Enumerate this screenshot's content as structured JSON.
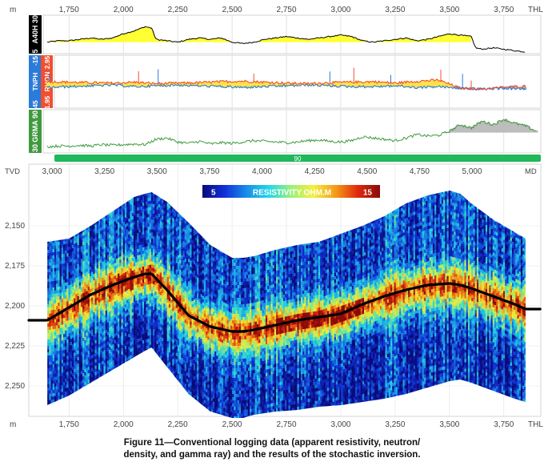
{
  "chart_data": [
    {
      "type": "line",
      "panel": "apparent-resistivity",
      "track_label": "A40H",
      "scale_min": "5",
      "scale_max": "30",
      "fill_color": "#ffff33",
      "fill_edge_color": "#000000",
      "x_unit_top": "m",
      "x_unit_end": "THL",
      "x_ticks": [
        "1,750",
        "2,000",
        "2,250",
        "2,500",
        "2,750",
        "3,000",
        "3,250",
        "3,500",
        "3,750"
      ],
      "x_tick_values": [
        1750,
        2000,
        2250,
        2500,
        2750,
        3000,
        3250,
        3500,
        3750
      ],
      "x_range": [
        1565,
        3920
      ],
      "x": [
        1650,
        1700,
        1750,
        1800,
        1850,
        1900,
        1950,
        2000,
        2050,
        2100,
        2130,
        2150,
        2200,
        2250,
        2300,
        2350,
        2400,
        2450,
        2500,
        2550,
        2600,
        2650,
        2700,
        2750,
        2800,
        2850,
        2900,
        2950,
        3000,
        3050,
        3100,
        3150,
        3200,
        3250,
        3300,
        3350,
        3400,
        3450,
        3500,
        3550,
        3600,
        3620,
        3650,
        3700,
        3750,
        3800,
        3850
      ],
      "values": [
        12,
        13,
        13,
        14,
        15,
        14,
        15,
        18,
        20,
        23,
        22,
        14,
        13,
        12,
        14,
        15,
        14,
        15,
        12,
        11,
        12,
        14,
        15,
        16,
        15,
        14,
        15,
        16,
        17,
        16,
        13,
        12,
        13,
        14,
        15,
        13,
        14,
        16,
        18,
        17,
        16,
        8,
        7,
        8,
        7,
        6,
        5
      ]
    },
    {
      "type": "line",
      "panel": "neutron-density",
      "label_neutron": "TNPH",
      "label_density": "RHON",
      "neutron_scale": [
        "45",
        "-15"
      ],
      "density_scale": [
        "1.95",
        "2.95"
      ],
      "neutron_color": "#2b7bd8",
      "density_color": "#f05030",
      "crossover_fill_color": "#ffe34d",
      "separation_fill_color": "#b0b0b0",
      "x": [
        1650,
        1750,
        1850,
        1950,
        2050,
        2150,
        2250,
        2350,
        2450,
        2550,
        2650,
        2750,
        2850,
        2950,
        3050,
        3150,
        3250,
        3350,
        3450,
        3550,
        3650,
        3750,
        3850
      ],
      "series": [
        {
          "name": "TNPH",
          "values": [
            22,
            21,
            20,
            19,
            21,
            20,
            19,
            20,
            21,
            22,
            21,
            20,
            19,
            20,
            21,
            21,
            20,
            22,
            21,
            23,
            24,
            23,
            24
          ]
        },
        {
          "name": "RHON",
          "values": [
            2.45,
            2.44,
            2.43,
            2.42,
            2.44,
            2.41,
            2.42,
            2.43,
            2.45,
            2.46,
            2.44,
            2.42,
            2.41,
            2.43,
            2.44,
            2.45,
            2.42,
            2.46,
            2.48,
            2.32,
            2.3,
            2.34,
            2.36
          ]
        }
      ]
    },
    {
      "type": "line",
      "panel": "gamma-ray",
      "track_label": "GRMA",
      "scale_min": "30",
      "scale_max": "90",
      "line_color": "#3f9a3f",
      "fill_color": "#bdbdbd",
      "x": [
        1650,
        1700,
        1750,
        1800,
        1850,
        1900,
        1950,
        2000,
        2050,
        2100,
        2150,
        2200,
        2250,
        2300,
        2350,
        2400,
        2450,
        2500,
        2550,
        2600,
        2650,
        2700,
        2750,
        2800,
        2850,
        2900,
        2950,
        3000,
        3050,
        3100,
        3150,
        3200,
        3250,
        3300,
        3350,
        3400,
        3450,
        3500,
        3550,
        3600,
        3650,
        3700,
        3750,
        3800,
        3850,
        3900
      ],
      "values": [
        37,
        38,
        38,
        39,
        38,
        40,
        39,
        40,
        41,
        40,
        48,
        50,
        44,
        42,
        45,
        41,
        43,
        42,
        44,
        46,
        45,
        44,
        43,
        44,
        46,
        47,
        45,
        44,
        46,
        52,
        50,
        48,
        46,
        50,
        55,
        53,
        54,
        60,
        70,
        65,
        75,
        70,
        78,
        72,
        68,
        60
      ]
    },
    {
      "type": "bar",
      "panel": "dip-band",
      "value_label": "90",
      "color": "#1fb85a"
    },
    {
      "type": "heatmap",
      "panel": "stochastic-inversion",
      "title": "RESISTIVITY OHM.M",
      "colorbar_min": "5",
      "colorbar_max": "15",
      "colormap": [
        "#0a0a7a",
        "#1030d8",
        "#1a8ee8",
        "#22d8e8",
        "#9cf07a",
        "#f5f03a",
        "#f59a18",
        "#e0280e",
        "#8a0a0a"
      ],
      "y_unit": "TVD",
      "md_unit": "MD",
      "y_ticks": [
        "2,150",
        "2,175",
        "2,200",
        "2,225",
        "2,250"
      ],
      "y_tick_values": [
        2150,
        2175,
        2200,
        2225,
        2250
      ],
      "y_range": [
        2120,
        2268
      ],
      "md_ticks": [
        "3,000",
        "3,250",
        "3,500",
        "3,750",
        "4,000",
        "4,250",
        "4,500",
        "4,750",
        "5,000"
      ],
      "md_tick_values": [
        3000,
        3250,
        3500,
        3750,
        4000,
        4250,
        4500,
        4750,
        5000
      ],
      "x_unit_bottom": "m",
      "x_unit_end": "THL",
      "x_ticks": [
        "1,750",
        "2,000",
        "2,250",
        "2,500",
        "2,750",
        "3,000",
        "3,250",
        "3,500",
        "3,750"
      ],
      "x_tick_values": [
        1750,
        2000,
        2250,
        2500,
        2750,
        3000,
        3250,
        3500,
        3750
      ],
      "x_range": [
        1565,
        3920
      ],
      "x": [
        1650,
        1750,
        1850,
        1950,
        2050,
        2100,
        2130,
        2200,
        2300,
        2400,
        2500,
        2550,
        2600,
        2700,
        2800,
        2900,
        3000,
        3100,
        3200,
        3300,
        3400,
        3500,
        3550,
        3600,
        3700,
        3800,
        3850
      ],
      "series": [
        {
          "name": "upper_envelope",
          "values": [
            2160,
            2158,
            2150,
            2141,
            2132,
            2130,
            2129,
            2135,
            2148,
            2162,
            2170,
            2170,
            2169,
            2165,
            2162,
            2160,
            2155,
            2150,
            2144,
            2136,
            2131,
            2128,
            2130,
            2136,
            2146,
            2154,
            2158
          ]
        },
        {
          "name": "lower_envelope",
          "values": [
            2262,
            2256,
            2248,
            2240,
            2232,
            2228,
            2226,
            2238,
            2255,
            2266,
            2270,
            2270,
            2268,
            2266,
            2265,
            2263,
            2262,
            2260,
            2258,
            2255,
            2251,
            2247,
            2246,
            2248,
            2253,
            2258,
            2260
          ]
        },
        {
          "name": "well_trajectory",
          "values": [
            2209,
            2201,
            2193,
            2187,
            2182,
            2180,
            2180,
            2190,
            2206,
            2213,
            2216,
            2216,
            2215,
            2212,
            2209,
            2207,
            2205,
            2199,
            2194,
            2190,
            2187,
            2186,
            2187,
            2189,
            2194,
            2199,
            2202
          ]
        }
      ]
    }
  ],
  "caption": {
    "line1": "Figure 11—Conventional logging data (apparent resistivity, neutron/",
    "line2": "density, and gamma ray) and the results of the stochastic inversion."
  }
}
